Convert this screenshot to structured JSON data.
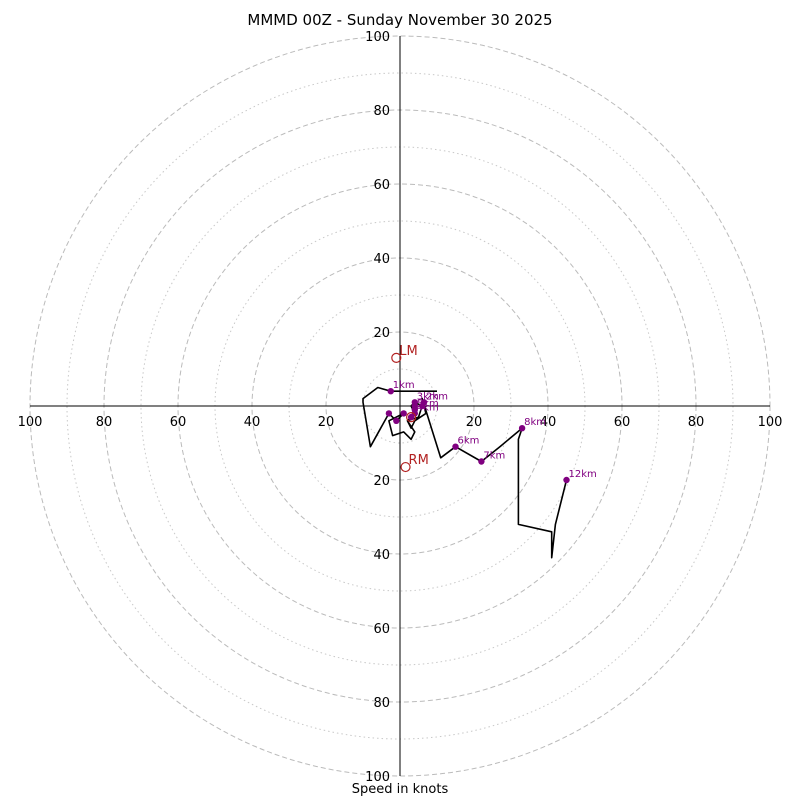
{
  "title": "MMMD 00Z - Sunday November 30 2025",
  "xlabel": "Speed in knots",
  "chart_data": {
    "type": "hodograph",
    "title": "MMMD 00Z - Sunday November 30 2025",
    "xlabel": "Speed in knots",
    "units": "knots",
    "range": [
      -100,
      100
    ],
    "rings_major": [
      20,
      40,
      60,
      80,
      100
    ],
    "rings_minor": [
      10,
      30,
      50,
      70,
      90
    ],
    "tick_labels": [
      "100",
      "80",
      "60",
      "40",
      "20",
      "20",
      "40",
      "60",
      "80",
      "100"
    ],
    "hodograph_trace": [
      {
        "u": 10,
        "v": 4
      },
      {
        "u": -2.5,
        "v": 4
      },
      {
        "u": -6,
        "v": 5
      },
      {
        "u": -10,
        "v": 2
      },
      {
        "u": -10,
        "v": 1
      },
      {
        "u": -8,
        "v": -11
      },
      {
        "u": -3,
        "v": -2
      },
      {
        "u": -1,
        "v": -4
      },
      {
        "u": 1,
        "v": -2
      },
      {
        "u": -3,
        "v": -4
      },
      {
        "u": -2,
        "v": -8
      },
      {
        "u": 1,
        "v": -7
      },
      {
        "u": 3,
        "v": -9
      },
      {
        "u": 4,
        "v": -7
      },
      {
        "u": 2,
        "v": -4
      },
      {
        "u": 5,
        "v": -3
      },
      {
        "u": 6,
        "v": 0
      },
      {
        "u": 4,
        "v": 1
      },
      {
        "u": 3,
        "v": 0
      },
      {
        "u": 4,
        "v": -2
      },
      {
        "u": 2,
        "v": -4
      },
      {
        "u": 3,
        "v": -6
      },
      {
        "u": 4,
        "v": -4
      },
      {
        "u": 7,
        "v": -2
      },
      {
        "u": 6,
        "v": 2
      },
      {
        "u": 11,
        "v": -14
      },
      {
        "u": 15,
        "v": -11
      },
      {
        "u": 22,
        "v": -15
      },
      {
        "u": 27,
        "v": -11
      },
      {
        "u": 33,
        "v": -6
      },
      {
        "u": 32,
        "v": -9
      },
      {
        "u": 32,
        "v": -15
      },
      {
        "u": 32,
        "v": -17
      },
      {
        "u": 32,
        "v": -20
      },
      {
        "u": 32,
        "v": -32
      },
      {
        "u": 41,
        "v": -34
      },
      {
        "u": 41,
        "v": -41
      },
      {
        "u": 42,
        "v": -32
      },
      {
        "u": 45,
        "v": -20
      }
    ],
    "height_labels": [
      {
        "label": "1km",
        "u": -2.5,
        "v": 4
      },
      {
        "label": "2km",
        "u": 6.5,
        "v": 1
      },
      {
        "label": "3km",
        "u": 4,
        "v": 1
      },
      {
        "label": "4km",
        "u": 4,
        "v": -2
      },
      {
        "label": "5km",
        "u": 4,
        "v": -1
      },
      {
        "label": "6km",
        "u": 15,
        "v": -11
      },
      {
        "label": "7km",
        "u": 22,
        "v": -15
      },
      {
        "label": "8km",
        "u": 33,
        "v": -6
      },
      {
        "label": "12km",
        "u": 45,
        "v": -20
      }
    ],
    "unlabeled_points": [
      {
        "u": -3,
        "v": -2
      },
      {
        "u": -1,
        "v": -4
      },
      {
        "u": 1,
        "v": -2
      },
      {
        "u": 4,
        "v": 0
      },
      {
        "u": 3,
        "v": -3
      },
      {
        "u": 6,
        "v": 0
      }
    ],
    "storm_motion": [
      {
        "label": "LM",
        "u": -1,
        "v": 13
      },
      {
        "label": "RM",
        "u": 1.5,
        "v": -16.5
      },
      {
        "label": "",
        "u": 3,
        "v": -3
      }
    ]
  }
}
